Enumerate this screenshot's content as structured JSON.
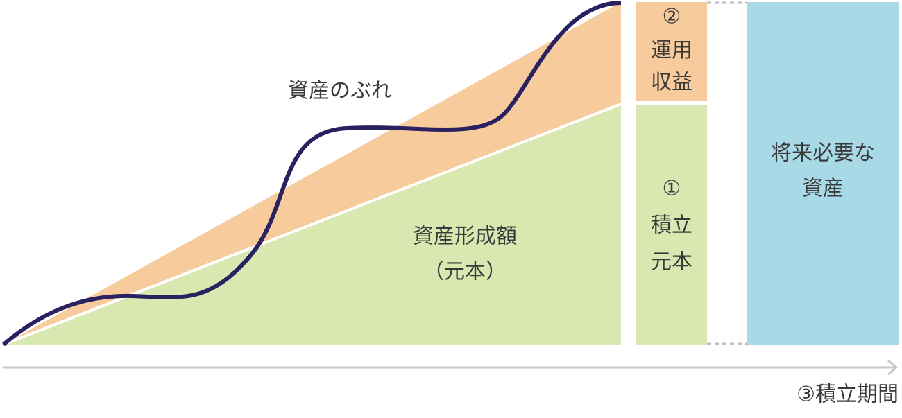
{
  "diagram": {
    "curve_label": "資産のぶれ",
    "area_label": [
      "資産形成額",
      "（元本）"
    ],
    "returns_box": [
      "②",
      "運用",
      "収益"
    ],
    "principal_box": [
      "①",
      "積立",
      "元本"
    ],
    "future_box": [
      "将来必要な",
      "資産"
    ],
    "axis_label": "③積立期間"
  }
}
